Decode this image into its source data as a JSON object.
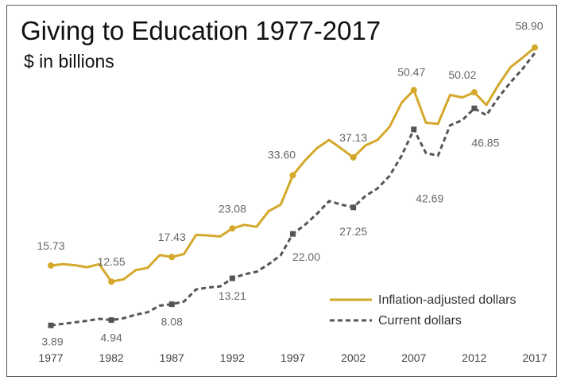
{
  "chart_data": {
    "type": "line",
    "title": "Giving to Education 1977-2017",
    "subtitle": "$ in billions",
    "xlabel": "",
    "ylabel": "",
    "xlim": [
      1977,
      2017
    ],
    "ylim": [
      0,
      62
    ],
    "x_ticks": [
      "1977",
      "1982",
      "1987",
      "1992",
      "1997",
      "2002",
      "2007",
      "2012",
      "2017"
    ],
    "legend_position": "bottom-right",
    "grid": false,
    "colors": {
      "inflation": "#d4a82a",
      "current": "#555555",
      "label": "#666666"
    },
    "series": [
      {
        "name": "Inflation-adjusted dollars",
        "style": "solid",
        "x": [
          1977,
          1978,
          1979,
          1980,
          1981,
          1982,
          1983,
          1984,
          1985,
          1986,
          1987,
          1988,
          1989,
          1990,
          1991,
          1992,
          1993,
          1994,
          1995,
          1996,
          1997,
          1998,
          1999,
          2000,
          2001,
          2002,
          2003,
          2004,
          2005,
          2006,
          2007,
          2008,
          2009,
          2010,
          2011,
          2012,
          2013,
          2014,
          2015,
          2016,
          2017
        ],
        "values": [
          15.73,
          16.0,
          15.8,
          15.4,
          16.0,
          12.55,
          13.0,
          14.8,
          15.3,
          17.8,
          17.43,
          18.0,
          21.8,
          21.7,
          21.5,
          23.08,
          23.8,
          23.4,
          26.5,
          27.8,
          33.6,
          36.5,
          39.0,
          40.6,
          38.9,
          37.13,
          39.5,
          40.6,
          43.2,
          48.0,
          50.47,
          44.0,
          43.8,
          49.5,
          49.0,
          50.02,
          47.5,
          51.5,
          55.0,
          56.9,
          58.9
        ],
        "labeled": [
          {
            "x": 1977,
            "label": "15.73"
          },
          {
            "x": 1982,
            "label": "12.55"
          },
          {
            "x": 1987,
            "label": "17.43"
          },
          {
            "x": 1992,
            "label": "23.08"
          },
          {
            "x": 1997,
            "label": "33.60"
          },
          {
            "x": 2002,
            "label": "37.13"
          },
          {
            "x": 2007,
            "label": "50.47"
          },
          {
            "x": 2012,
            "label": "50.02"
          },
          {
            "x": 2017,
            "label": "58.90"
          }
        ]
      },
      {
        "name": "Current dollars",
        "style": "dashed",
        "x": [
          1977,
          1978,
          1979,
          1980,
          1981,
          1982,
          1983,
          1984,
          1985,
          1986,
          1987,
          1988,
          1989,
          1990,
          1991,
          1992,
          1993,
          1994,
          1995,
          1996,
          1997,
          1998,
          1999,
          2000,
          2001,
          2002,
          2003,
          2004,
          2005,
          2006,
          2007,
          2008,
          2009,
          2010,
          2011,
          2012,
          2013,
          2014,
          2015,
          2016,
          2017
        ],
        "values": [
          3.89,
          4.2,
          4.5,
          4.8,
          5.2,
          4.94,
          5.3,
          6.0,
          6.5,
          7.8,
          8.08,
          8.6,
          11.0,
          11.4,
          11.6,
          13.21,
          14.0,
          14.5,
          16.0,
          17.8,
          22.0,
          23.8,
          26.0,
          28.5,
          27.8,
          27.25,
          29.5,
          31.0,
          33.5,
          37.5,
          42.69,
          38.0,
          37.5,
          43.5,
          44.5,
          46.85,
          45.5,
          49.0,
          52.0,
          54.7,
          57.8
        ],
        "labeled": [
          {
            "x": 1977,
            "label": "3.89"
          },
          {
            "x": 1982,
            "label": "4.94"
          },
          {
            "x": 1987,
            "label": "8.08"
          },
          {
            "x": 1992,
            "label": "13.21"
          },
          {
            "x": 1997,
            "label": "22.00"
          },
          {
            "x": 2002,
            "label": "27.25"
          },
          {
            "x": 2007,
            "label": "42.69"
          },
          {
            "x": 2012,
            "label": "46.85"
          }
        ]
      }
    ]
  }
}
